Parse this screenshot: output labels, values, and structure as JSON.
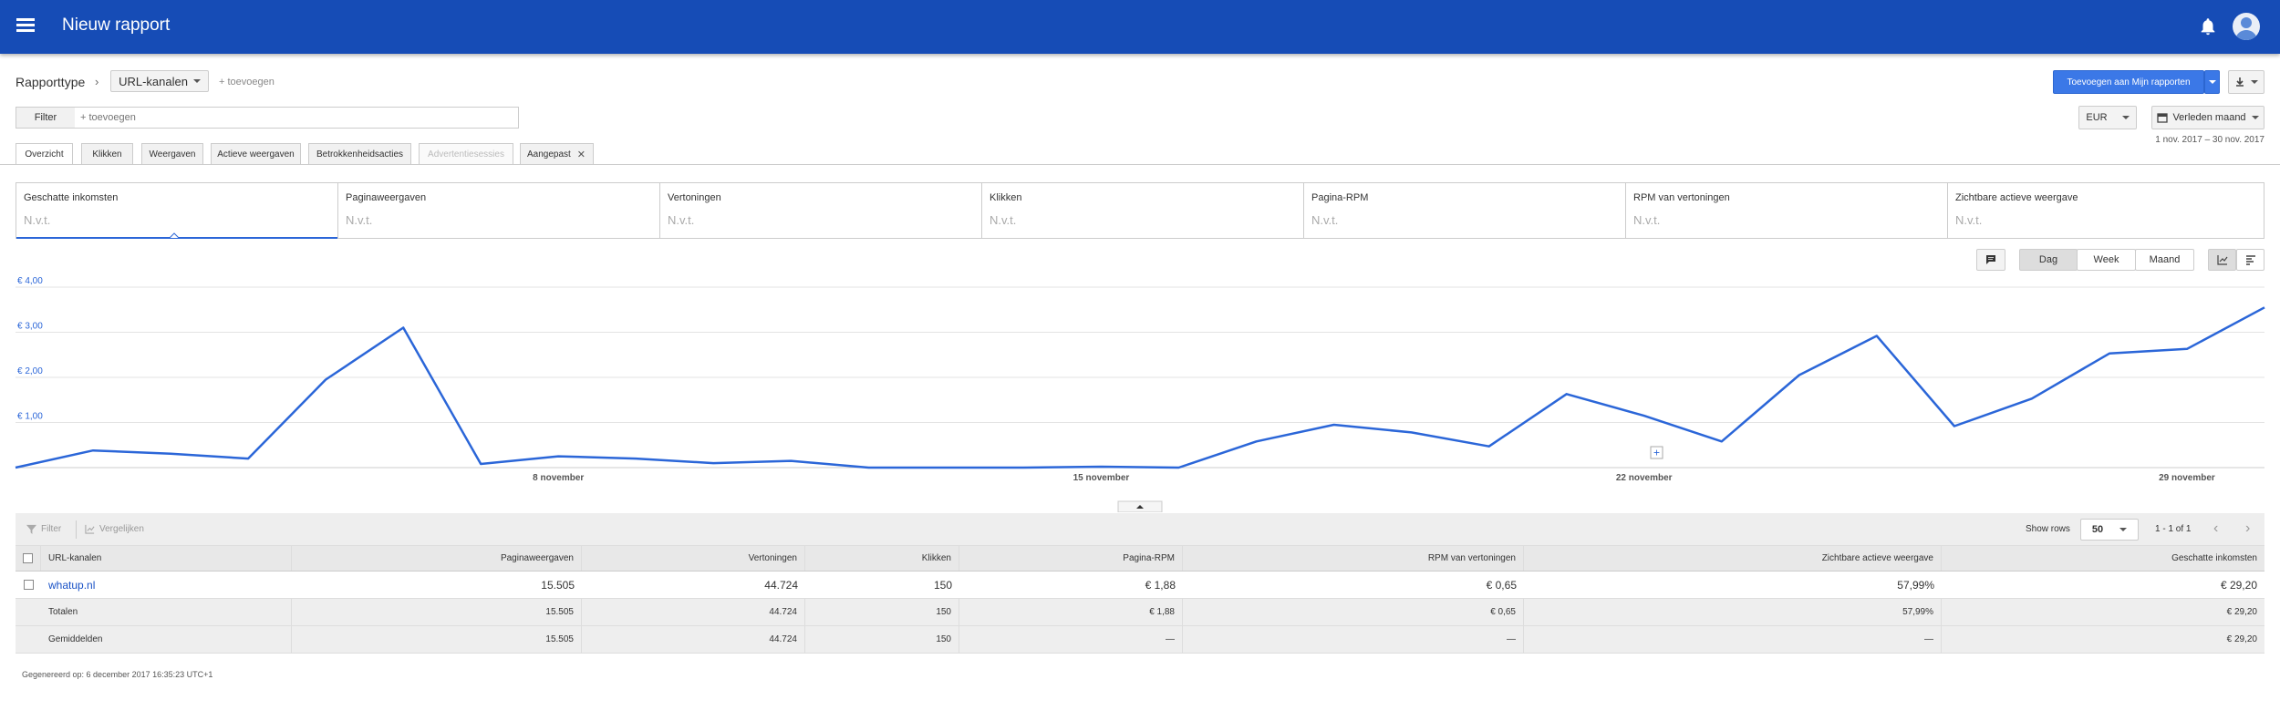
{
  "header": {
    "title": "Nieuw rapport"
  },
  "toolbar": {
    "report_type_label": "Rapporttype",
    "report_type_value": "URL-kanalen",
    "add_label": "+ toevoegen",
    "add_to_reports": "Toevoegen aan Mijn rapporten",
    "currency": "EUR",
    "date_range": "Verleden maand",
    "date_detail": "1 nov. 2017 – 30 nov. 2017"
  },
  "filter": {
    "button": "Filter",
    "placeholder": "+ toevoegen"
  },
  "tabs": [
    {
      "label": "Overzicht"
    },
    {
      "label": "Klikken"
    },
    {
      "label": "Weergaven"
    },
    {
      "label": "Actieve weergaven"
    },
    {
      "label": "Betrokkenheidsacties"
    },
    {
      "label": "Advertentiesessies"
    },
    {
      "label": "Aangepast"
    }
  ],
  "metrics": [
    {
      "label": "Geschatte inkomsten",
      "value": "N.v.t."
    },
    {
      "label": "Paginaweergaven",
      "value": "N.v.t."
    },
    {
      "label": "Vertoningen",
      "value": "N.v.t."
    },
    {
      "label": "Klikken",
      "value": "N.v.t."
    },
    {
      "label": "Pagina-RPM",
      "value": "N.v.t."
    },
    {
      "label": "RPM van vertoningen",
      "value": "N.v.t."
    },
    {
      "label": "Zichtbare actieve weergave",
      "value": "N.v.t."
    }
  ],
  "granularity": {
    "day": "Dag",
    "week": "Week",
    "month": "Maand"
  },
  "chart_data": {
    "type": "line",
    "x": [
      "1 nov",
      "2 nov",
      "3 nov",
      "4 nov",
      "5 nov",
      "6 nov",
      "7 nov",
      "8 nov",
      "9 nov",
      "10 nov",
      "11 nov",
      "12 nov",
      "13 nov",
      "14 nov",
      "15 nov",
      "16 nov",
      "17 nov",
      "18 nov",
      "19 nov",
      "20 nov",
      "21 nov",
      "22 nov",
      "23 nov",
      "24 nov",
      "25 nov",
      "26 nov",
      "27 nov",
      "28 nov",
      "29 nov",
      "30 nov"
    ],
    "values": [
      0.0,
      0.38,
      0.31,
      0.2,
      1.95,
      3.1,
      0.08,
      0.25,
      0.2,
      0.1,
      0.15,
      0.0,
      0.0,
      0.0,
      0.02,
      0.0,
      0.58,
      0.95,
      0.78,
      0.47,
      1.63,
      1.15,
      0.58,
      2.05,
      2.92,
      0.92,
      1.53,
      2.53,
      2.63,
      3.55
    ],
    "y_tick_labels": [
      "€ 1,00",
      "€ 2,00",
      "€ 3,00",
      "€ 4,00"
    ],
    "y_ticks": [
      1,
      2,
      3,
      4
    ],
    "ylim": [
      0,
      4
    ],
    "x_tick_labels": [
      "8 november",
      "15 november",
      "22 november",
      "29 november"
    ],
    "x_tick_positions": [
      "8 nov",
      "15 nov",
      "22 nov",
      "29 nov"
    ],
    "color": "#2b66d8",
    "grid": true
  },
  "table": {
    "toolbar": {
      "filter": "Filter",
      "compare": "Vergelijken",
      "show_rows": "Show rows",
      "rows_value": "50",
      "range": "1 - 1 of 1"
    },
    "columns": [
      "URL-kanalen",
      "Paginaweergaven",
      "Vertoningen",
      "Klikken",
      "Pagina-RPM",
      "RPM van vertoningen",
      "Zichtbare actieve weergave",
      "Geschatte inkomsten"
    ],
    "rows": [
      [
        "whatup.nl",
        "15.505",
        "44.724",
        "150",
        "€ 1,88",
        "€ 0,65",
        "57,99%",
        "€ 29,20"
      ]
    ],
    "totals": [
      "Totalen",
      "15.505",
      "44.724",
      "150",
      "€ 1,88",
      "€ 0,65",
      "57,99%",
      "€ 29,20"
    ],
    "averages": [
      "Gemiddelden",
      "15.505",
      "44.724",
      "150",
      "—",
      "—",
      "—",
      "€ 29,20"
    ]
  },
  "footer": {
    "generated": "Gegenereerd op: 6 december 2017 16:35:23 UTC+1"
  }
}
